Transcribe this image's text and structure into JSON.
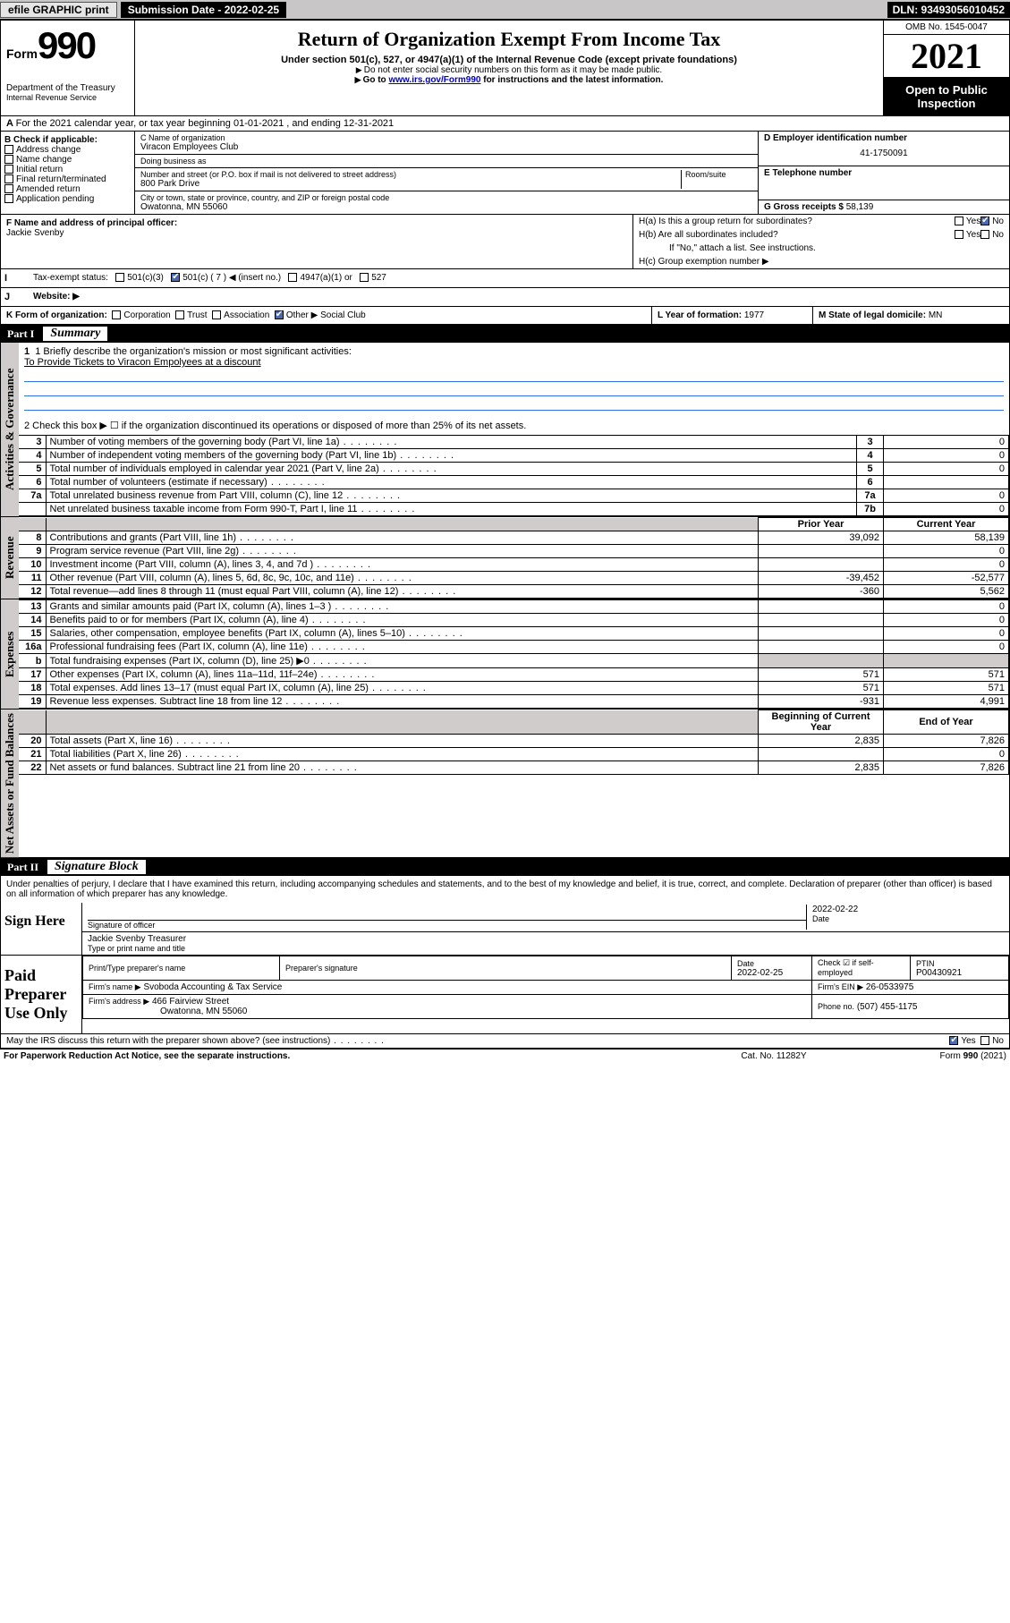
{
  "topbar": {
    "efile": "efile GRAPHIC print",
    "subdate_label": "Submission Date - ",
    "subdate": "2022-02-25",
    "dln": "DLN: 93493056010452"
  },
  "header": {
    "form_word": "Form",
    "form_number": "990",
    "dept": "Department of the Treasury",
    "irs": "Internal Revenue Service",
    "title": "Return of Organization Exempt From Income Tax",
    "subtitle": "Under section 501(c), 527, or 4947(a)(1) of the Internal Revenue Code (except private foundations)",
    "instr1": "Do not enter social security numbers on this form as it may be made public.",
    "instr2_pre": "Go to ",
    "instr2_link": "www.irs.gov/Form990",
    "instr2_post": " for instructions and the latest information.",
    "omb": "OMB No. 1545-0047",
    "year": "2021",
    "open": "Open to Public Inspection"
  },
  "period": {
    "text": "For the 2021 calendar year, or tax year beginning 01-01-2021   , and ending 12-31-2021"
  },
  "boxB": {
    "title": "B Check if applicable:",
    "opts": [
      "Address change",
      "Name change",
      "Initial return",
      "Final return/terminated",
      "Amended return",
      "Application pending"
    ]
  },
  "boxC": {
    "label_name": "C Name of organization",
    "name": "Viracon Employees Club",
    "dba_label": "Doing business as",
    "dba": "",
    "addr_label": "Number and street (or P.O. box if mail is not delivered to street address)",
    "room_label": "Room/suite",
    "addr": "800 Park Drive",
    "city_label": "City or town, state or province, country, and ZIP or foreign postal code",
    "city": "Owatonna, MN  55060"
  },
  "boxD": {
    "label": "D Employer identification number",
    "value": "41-1750091"
  },
  "boxE": {
    "label": "E Telephone number",
    "value": ""
  },
  "boxG": {
    "label": "G Gross receipts $",
    "value": "58,139"
  },
  "boxF": {
    "label": "F Name and address of principal officer:",
    "name": "Jackie Svenby"
  },
  "boxH": {
    "a": "H(a)  Is this a group return for subordinates?",
    "a_yes": "Yes",
    "a_no": "No",
    "b": "H(b)  Are all subordinates included?",
    "b_yes": "Yes",
    "b_no": "No",
    "b_note": "If \"No,\" attach a list. See instructions.",
    "c": "H(c)  Group exemption number ▶"
  },
  "rowI": {
    "label": "Tax-exempt status:",
    "opts": [
      "501(c)(3)",
      "501(c) ( 7 ) ◀ (insert no.)",
      "4947(a)(1) or",
      "527"
    ],
    "checked_idx": 1
  },
  "rowJ": {
    "label": "Website: ▶",
    "value": ""
  },
  "rowK": {
    "label": "K Form of organization:",
    "opts": [
      "Corporation",
      "Trust",
      "Association",
      "Other ▶"
    ],
    "checked_idx": 3,
    "other_value": "Social Club"
  },
  "rowL": {
    "label": "L Year of formation:",
    "value": "1977"
  },
  "rowM": {
    "label": "M State of legal domicile:",
    "value": "MN"
  },
  "part1": {
    "name": "Part I",
    "title": "Summary",
    "tab_gov": "Activities & Governance",
    "tab_rev": "Revenue",
    "tab_exp": "Expenses",
    "tab_net": "Net Assets or Fund Balances",
    "q1_label": "1  Briefly describe the organization's mission or most significant activities:",
    "q1_value": "To Provide Tickets to Viracon Empolyees at a discount",
    "q2": "2   Check this box ▶ ☐  if the organization discontinued its operations or disposed of more than 25% of its net assets.",
    "rows_gov": [
      {
        "n": "3",
        "label": "Number of voting members of the governing body (Part VI, line 1a)",
        "box": "3",
        "val": "0"
      },
      {
        "n": "4",
        "label": "Number of independent voting members of the governing body (Part VI, line 1b)",
        "box": "4",
        "val": "0"
      },
      {
        "n": "5",
        "label": "Total number of individuals employed in calendar year 2021 (Part V, line 2a)",
        "box": "5",
        "val": "0"
      },
      {
        "n": "6",
        "label": "Total number of volunteers (estimate if necessary)",
        "box": "6",
        "val": ""
      },
      {
        "n": "7a",
        "label": "Total unrelated business revenue from Part VIII, column (C), line 12",
        "box": "7a",
        "val": "0"
      },
      {
        "n": "",
        "label": "Net unrelated business taxable income from Form 990-T, Part I, line 11",
        "box": "7b",
        "val": "0"
      }
    ],
    "col_prior": "Prior Year",
    "col_curr": "Current Year",
    "rows_rev": [
      {
        "n": "8",
        "label": "Contributions and grants (Part VIII, line 1h)",
        "p": "39,092",
        "c": "58,139"
      },
      {
        "n": "9",
        "label": "Program service revenue (Part VIII, line 2g)",
        "p": "",
        "c": "0"
      },
      {
        "n": "10",
        "label": "Investment income (Part VIII, column (A), lines 3, 4, and 7d )",
        "p": "",
        "c": "0"
      },
      {
        "n": "11",
        "label": "Other revenue (Part VIII, column (A), lines 5, 6d, 8c, 9c, 10c, and 11e)",
        "p": "-39,452",
        "c": "-52,577"
      },
      {
        "n": "12",
        "label": "Total revenue—add lines 8 through 11 (must equal Part VIII, column (A), line 12)",
        "p": "-360",
        "c": "5,562"
      }
    ],
    "rows_exp": [
      {
        "n": "13",
        "label": "Grants and similar amounts paid (Part IX, column (A), lines 1–3 )",
        "p": "",
        "c": "0"
      },
      {
        "n": "14",
        "label": "Benefits paid to or for members (Part IX, column (A), line 4)",
        "p": "",
        "c": "0"
      },
      {
        "n": "15",
        "label": "Salaries, other compensation, employee benefits (Part IX, column (A), lines 5–10)",
        "p": "",
        "c": "0"
      },
      {
        "n": "16a",
        "label": "Professional fundraising fees (Part IX, column (A), line 11e)",
        "p": "",
        "c": "0"
      },
      {
        "n": "b",
        "label": "Total fundraising expenses (Part IX, column (D), line 25) ▶0",
        "p": "SHADE",
        "c": "SHADE"
      },
      {
        "n": "17",
        "label": "Other expenses (Part IX, column (A), lines 11a–11d, 11f–24e)",
        "p": "571",
        "c": "571"
      },
      {
        "n": "18",
        "label": "Total expenses. Add lines 13–17 (must equal Part IX, column (A), line 25)",
        "p": "571",
        "c": "571"
      },
      {
        "n": "19",
        "label": "Revenue less expenses. Subtract line 18 from line 12",
        "p": "-931",
        "c": "4,991"
      }
    ],
    "col_beg": "Beginning of Current Year",
    "col_end": "End of Year",
    "rows_net": [
      {
        "n": "20",
        "label": "Total assets (Part X, line 16)",
        "p": "2,835",
        "c": "7,826"
      },
      {
        "n": "21",
        "label": "Total liabilities (Part X, line 26)",
        "p": "",
        "c": "0"
      },
      {
        "n": "22",
        "label": "Net assets or fund balances. Subtract line 21 from line 20",
        "p": "2,835",
        "c": "7,826"
      }
    ]
  },
  "part2": {
    "name": "Part II",
    "title": "Signature Block",
    "jurat": "Under penalties of perjury, I declare that I have examined this return, including accompanying schedules and statements, and to the best of my knowledge and belief, it is true, correct, and complete. Declaration of preparer (other than officer) is based on all information of which preparer has any knowledge.",
    "sign_here": "Sign Here",
    "sig_officer_lbl": "Signature of officer",
    "sig_date_lbl": "Date",
    "sig_date": "2022-02-22",
    "sig_name": "Jackie Svenby  Treasurer",
    "sig_name_lbl": "Type or print name and title",
    "paid_prep": "Paid Preparer Use Only",
    "prep_name_lbl": "Print/Type preparer's name",
    "prep_sig_lbl": "Preparer's signature",
    "prep_date_lbl": "Date",
    "prep_date": "2022-02-25",
    "prep_check_lbl": "Check ☑ if self-employed",
    "ptin_lbl": "PTIN",
    "ptin": "P00430921",
    "firm_name_lbl": "Firm's name   ▶",
    "firm_name": "Svoboda Accounting & Tax Service",
    "firm_ein_lbl": "Firm's EIN ▶",
    "firm_ein": "26-0533975",
    "firm_addr_lbl": "Firm's address ▶",
    "firm_addr1": "466 Fairview Street",
    "firm_addr2": "Owatonna, MN  55060",
    "phone_lbl": "Phone no.",
    "phone": "(507) 455-1175",
    "may_irs": "May the IRS discuss this return with the preparer shown above? (see instructions)",
    "may_yes": "Yes",
    "may_no": "No"
  },
  "footer": {
    "pra": "For Paperwork Reduction Act Notice, see the separate instructions.",
    "cat": "Cat. No. 11282Y",
    "form": "Form 990 (2021)"
  }
}
